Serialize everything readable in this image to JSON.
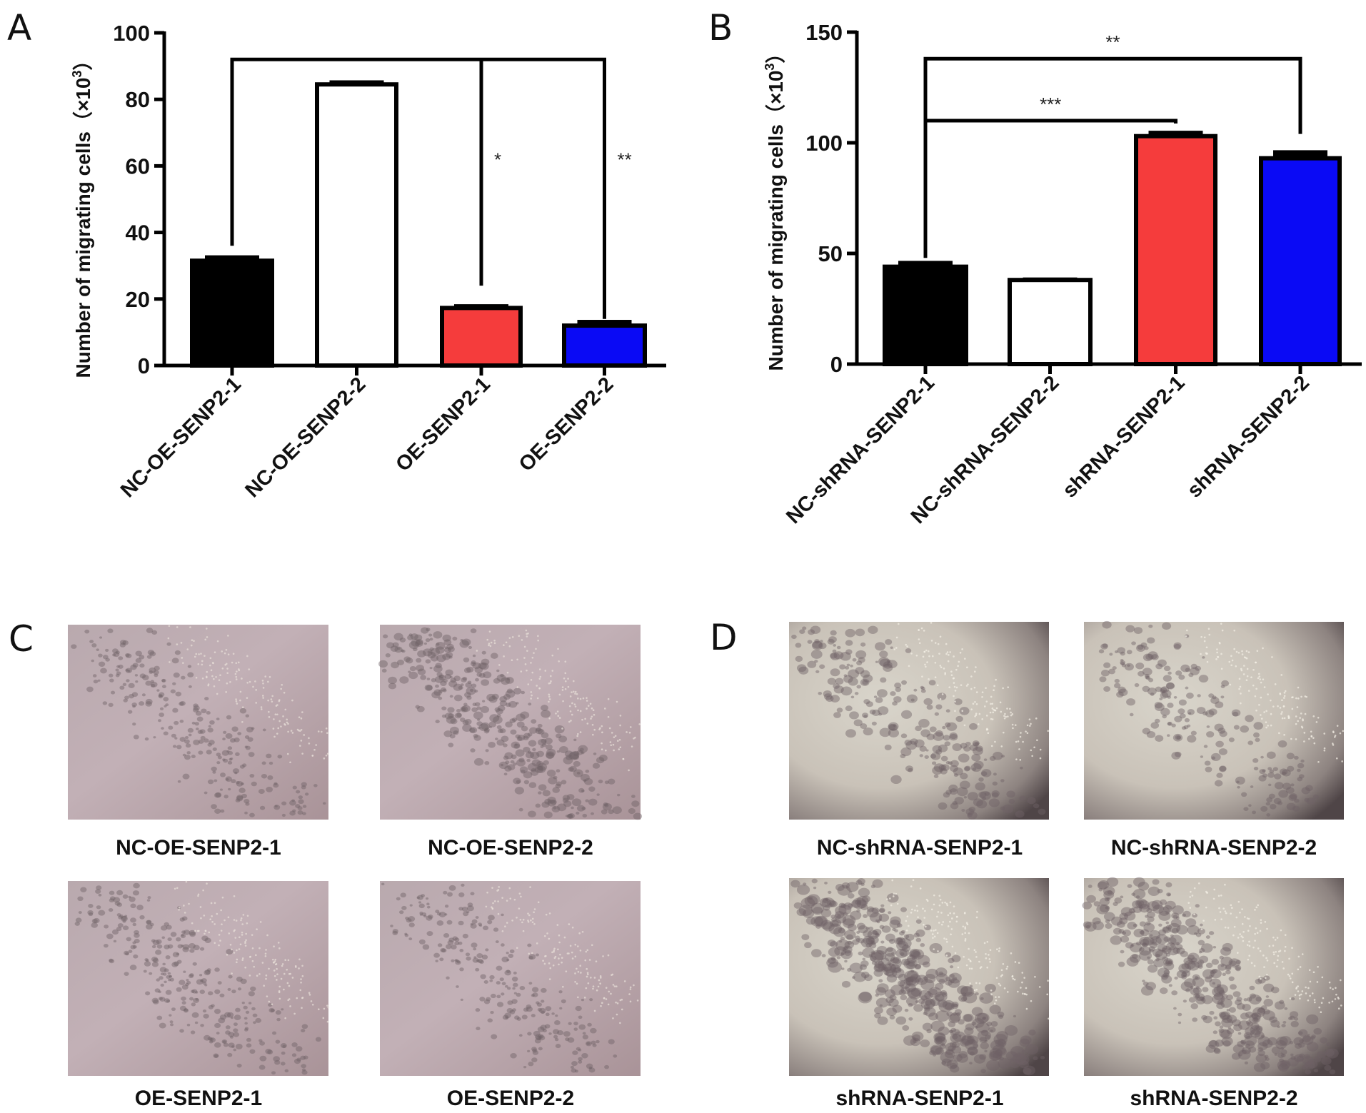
{
  "chart_data": [
    {
      "panel": "A",
      "type": "bar",
      "ylabel": "Number of migrating cells（×10",
      "ylabel_sup": "3",
      "ylabel_end": "）",
      "ylim": [
        0,
        100
      ],
      "yticks": [
        0,
        20,
        40,
        60,
        80,
        100
      ],
      "categories": [
        "NC-OE-SENP2-1",
        "NC-OE-SENP2-2",
        "OE-SENP2-1",
        "OE-SENP2-2"
      ],
      "values": [
        31.5,
        84.5,
        17.3,
        12
      ],
      "errors": [
        1.2,
        0.8,
        0.7,
        1.3
      ],
      "colors": [
        "#000000",
        "#ffffff",
        "#f53c3c",
        "#0a0af5"
      ],
      "significance": [
        {
          "from": "NC-OE-SENP2-1",
          "to": "OE-SENP2-1",
          "label": "*"
        },
        {
          "from": "NC-OE-SENP2-1",
          "to": "OE-SENP2-2",
          "label": "**"
        }
      ]
    },
    {
      "panel": "B",
      "type": "bar",
      "ylabel": "Number of migrating cells（×10",
      "ylabel_sup": "3",
      "ylabel_end": "）",
      "ylim": [
        0,
        150
      ],
      "yticks": [
        0,
        50,
        100,
        150
      ],
      "categories": [
        "NC-shRNA-SENP2-1",
        "NC-shRNA-SENP2-2",
        "shRNA-SENP2-1",
        "shRNA-SENP2-2"
      ],
      "values": [
        44,
        38,
        103,
        93
      ],
      "errors": [
        2,
        0.5,
        1.8,
        3
      ],
      "colors": [
        "#000000",
        "#ffffff",
        "#f53c3c",
        "#0a0af5"
      ],
      "significance": [
        {
          "from": "NC-shRNA-SENP2-1",
          "to": "shRNA-SENP2-1",
          "label": "***"
        },
        {
          "from": "NC-shRNA-SENP2-1",
          "to": "shRNA-SENP2-2",
          "label": "**"
        }
      ]
    }
  ],
  "images": {
    "C": {
      "letter": "C",
      "captions": [
        "NC-OE-SENP2-1",
        "NC-OE-SENP2-2",
        "OE-SENP2-1",
        "OE-SENP2-2"
      ]
    },
    "D": {
      "letter": "D",
      "captions": [
        "NC-shRNA-SENP2-1",
        "NC-shRNA-SENP2-2",
        "shRNA-SENP2-1",
        "shRNA-SENP2-2"
      ]
    }
  }
}
